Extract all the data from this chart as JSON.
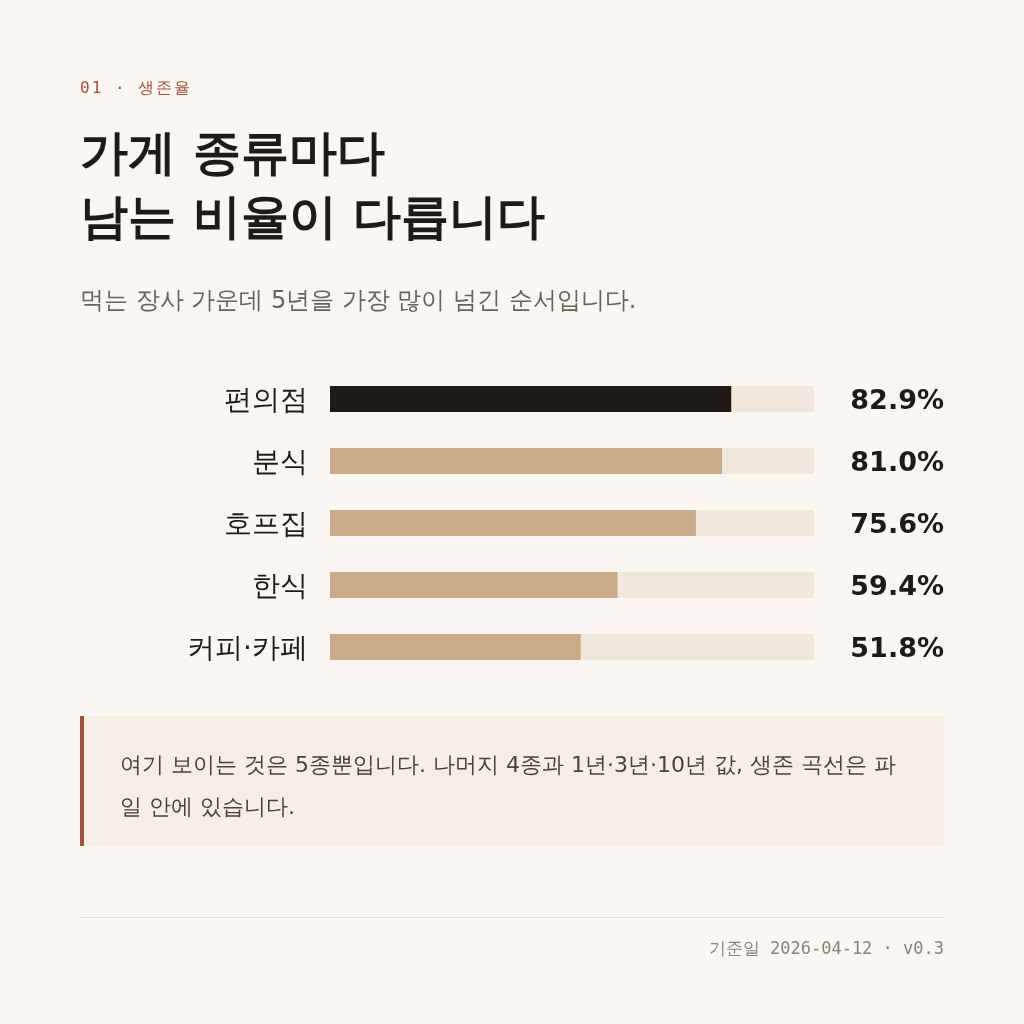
{
  "chart_data": {
    "type": "bar",
    "orientation": "horizontal",
    "title": "가게 종류마다\n남는 비율이 다릅니다",
    "subtitle": "먹는 장사 가운데 5년을 가장 많이 넘긴 순서입니다.",
    "categories": [
      "편의점",
      "분식",
      "호프집",
      "한식",
      "커피·카페"
    ],
    "values": [
      82.9,
      81.0,
      75.6,
      59.4,
      51.8
    ],
    "colors": [
      "#1f1a17",
      "#c9ab88",
      "#c9ab88",
      "#c9ab88",
      "#c9ab88"
    ],
    "value_labels": [
      "82.9%",
      "81.0%",
      "75.6%",
      "59.4%",
      "51.8%"
    ],
    "xlim": [
      0,
      100
    ],
    "annotations": [
      "01 · 생존율",
      "여기 보이는 것은 5종뿐입니다. 나머지 4종과 1년·3년·10년 값, 생존 곡선은 파일 안에 있습니다.",
      "기준일 2026-04-12 · v0.3"
    ],
    "grid": false
  }
}
